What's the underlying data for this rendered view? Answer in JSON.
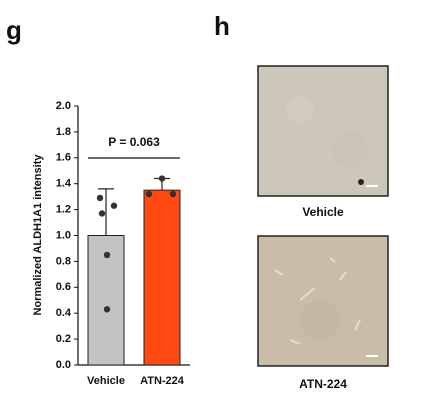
{
  "panel_labels": [
    "g",
    "h"
  ],
  "chart_data": {
    "type": "bar",
    "ylabel": "Normalized ALDH1A1 intensity",
    "categories": [
      "Vehicle",
      "ATN-224"
    ],
    "values": [
      1.0,
      1.35
    ],
    "errors": [
      0.36,
      0.09
    ],
    "colors": [
      "#c3c3c3",
      "#ff4a14"
    ],
    "points": [
      [
        1.29,
        1.23,
        1.17,
        0.85,
        0.43
      ],
      [
        1.44,
        1.32,
        1.32
      ]
    ],
    "annotation": "P = 0.063",
    "ylim": [
      0,
      2.0
    ],
    "yticks": [
      {
        "value": 0,
        "label": "0.0"
      },
      {
        "value": 0.2,
        "label": "0.2"
      },
      {
        "value": 0.4,
        "label": "0.4"
      },
      {
        "value": 0.6,
        "label": "0.6"
      },
      {
        "value": 0.8,
        "label": "0.8"
      },
      {
        "value": 1.0,
        "label": "1.0"
      },
      {
        "value": 1.2,
        "label": "1.2"
      },
      {
        "value": 1.4,
        "label": "1.4"
      },
      {
        "value": 1.6,
        "label": "1.6"
      },
      {
        "value": 1.8,
        "label": "1.8"
      },
      {
        "value": 2.0,
        "label": "2.0"
      }
    ]
  },
  "images": [
    {
      "label": "Vehicle"
    },
    {
      "label": "ATN-224"
    }
  ]
}
